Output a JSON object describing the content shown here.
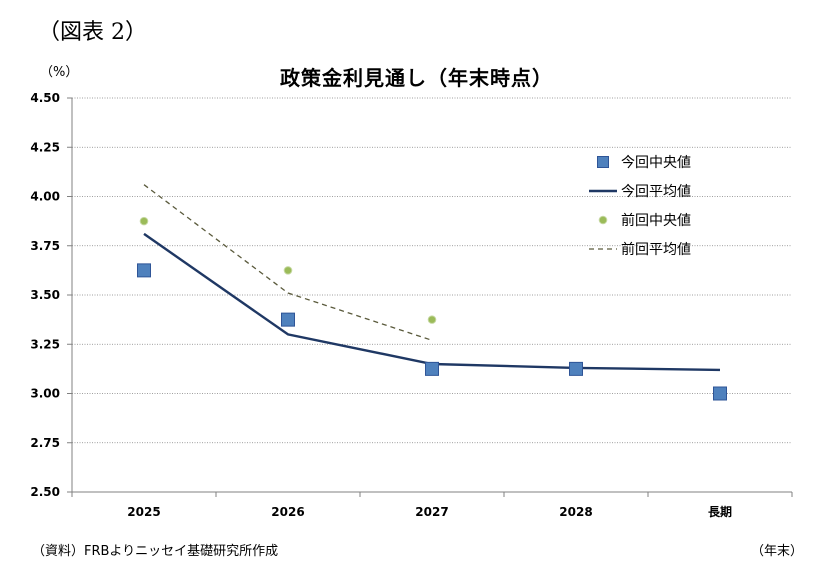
{
  "figure_label": "（図表 2）",
  "unit_label": "（%）",
  "source_note": "（資料）FRBよりニッセイ基礎研究所作成",
  "x_unit_label": "（年末）",
  "chart_data": {
    "type": "line",
    "title": "政策金利見通し（年末時点）",
    "xlabel": "",
    "ylabel": "",
    "categories": [
      "2025",
      "2026",
      "2027",
      "2028",
      "長期"
    ],
    "ylim": [
      2.5,
      4.5
    ],
    "y_ticks": [
      2.5,
      2.75,
      3.0,
      3.25,
      3.5,
      3.75,
      4.0,
      4.25,
      4.5
    ],
    "y_tick_labels": [
      "2.50",
      "2.75",
      "3.00",
      "3.25",
      "3.50",
      "3.75",
      "4.00",
      "4.25",
      "4.50"
    ],
    "grid": true,
    "legend_position": "top-right",
    "series": [
      {
        "name": "今回中央値",
        "kind": "marker-square",
        "color": "#4f81bd",
        "values": [
          3.625,
          3.375,
          3.125,
          3.125,
          3.0
        ]
      },
      {
        "name": "今回平均値",
        "kind": "line-solid",
        "color": "#1f3864",
        "values": [
          3.81,
          3.3,
          3.15,
          3.13,
          3.12
        ]
      },
      {
        "name": "前回中央値",
        "kind": "marker-circle",
        "color": "#9bbb59",
        "values": [
          3.875,
          3.625,
          3.375,
          null,
          3.0
        ]
      },
      {
        "name": "前回平均値",
        "kind": "line-dashed",
        "color": "#5a5a3c",
        "values": [
          4.06,
          3.51,
          3.27,
          null,
          null
        ]
      }
    ]
  }
}
